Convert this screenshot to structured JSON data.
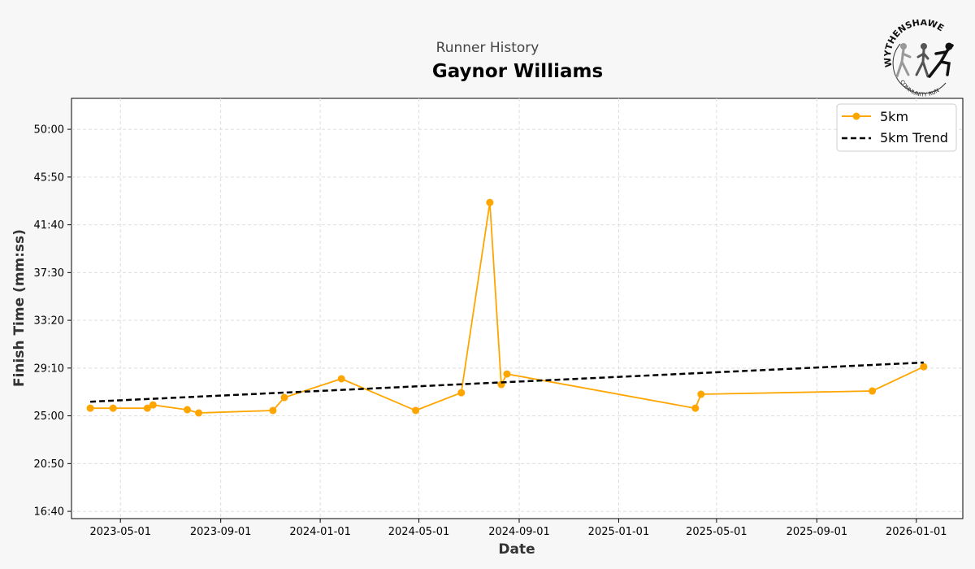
{
  "chart_data": {
    "type": "line",
    "subtitle": "Runner History",
    "title": "Gaynor Williams",
    "xlabel": "Date",
    "ylabel": "Finish Time (mm:ss)",
    "xlim": [
      "2023-03-02",
      "2026-02-27"
    ],
    "ylim_seconds": [
      962,
      3162
    ],
    "x_ticks": [
      "2023-05-01",
      "2023-09-01",
      "2024-01-01",
      "2024-05-01",
      "2024-09-01",
      "2025-01-01",
      "2025-05-01",
      "2025-09-01",
      "2026-01-01"
    ],
    "y_ticks": [
      "16:40",
      "20:50",
      "25:00",
      "29:10",
      "33:20",
      "37:30",
      "41:40",
      "45:50",
      "50:00"
    ],
    "grid": true,
    "legend_position": "top-right",
    "series": [
      {
        "name": "5km",
        "color": "#ffa500",
        "style": "solid-markers",
        "points": [
          {
            "date": "2023-03-25",
            "time": "25:40"
          },
          {
            "date": "2023-04-22",
            "time": "25:40"
          },
          {
            "date": "2023-06-03",
            "time": "25:40"
          },
          {
            "date": "2023-06-10",
            "time": "25:57"
          },
          {
            "date": "2023-07-22",
            "time": "25:32"
          },
          {
            "date": "2023-08-05",
            "time": "25:15"
          },
          {
            "date": "2023-11-04",
            "time": "25:28"
          },
          {
            "date": "2023-11-18",
            "time": "26:36"
          },
          {
            "date": "2024-01-27",
            "time": "28:14"
          },
          {
            "date": "2024-04-27",
            "time": "25:28"
          },
          {
            "date": "2024-06-22",
            "time": "27:01"
          },
          {
            "date": "2024-07-27",
            "time": "43:37"
          },
          {
            "date": "2024-08-10",
            "time": "27:44"
          },
          {
            "date": "2024-08-17",
            "time": "28:39"
          },
          {
            "date": "2025-04-05",
            "time": "25:40"
          },
          {
            "date": "2025-04-12",
            "time": "26:53"
          },
          {
            "date": "2025-11-08",
            "time": "27:10"
          },
          {
            "date": "2026-01-10",
            "time": "29:17"
          }
        ]
      },
      {
        "name": "5km Trend",
        "color": "#000000",
        "style": "dashed",
        "points": [
          {
            "date": "2023-03-25",
            "time": "26:14"
          },
          {
            "date": "2026-01-10",
            "time": "29:39"
          }
        ]
      }
    ]
  },
  "logo": {
    "text_top": "WYTHENSHAWE",
    "text_bottom": "COMMUNITY RUN"
  }
}
